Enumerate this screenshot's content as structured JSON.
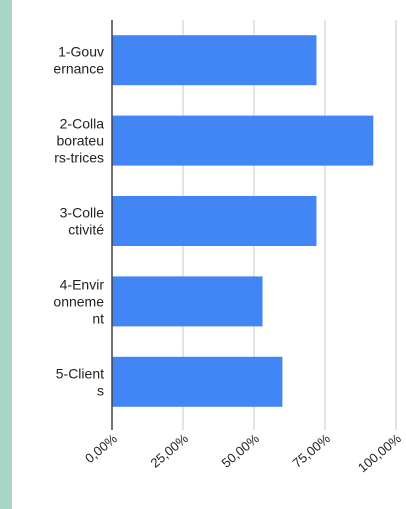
{
  "chart_data": {
    "type": "bar",
    "orientation": "horizontal",
    "title": "",
    "xlabel": "",
    "ylabel": "",
    "categories": [
      [
        "1-Gouv",
        "ernance"
      ],
      [
        "2-Colla",
        "borateu",
        "rs-trices"
      ],
      [
        "3-Colle",
        "ctivité"
      ],
      [
        "4-Envir",
        "onneme",
        "nt"
      ],
      [
        "5-Client",
        "s"
      ]
    ],
    "values": [
      72,
      92,
      72,
      53,
      60
    ],
    "value_unit": "%",
    "xlim": [
      0,
      100
    ],
    "xticks": [
      0,
      25,
      50,
      75,
      100
    ],
    "xtick_labels": [
      "0,00%",
      "25,00%",
      "50,00%",
      "75,00%",
      "100,00%"
    ],
    "grid": "vertical",
    "legend": "none",
    "bar_color": "#4285f4",
    "grid_color": "#c8c8c8",
    "axis_color": "#444444"
  }
}
